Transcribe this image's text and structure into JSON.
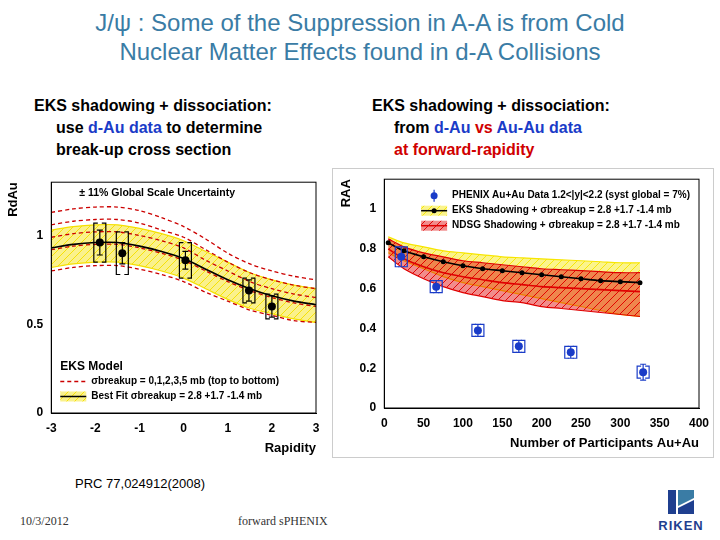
{
  "slide": {
    "title": [
      "J/ψ : Some of the Suppression in A-A is from Cold",
      "Nuclear Matter Effects found in d-A Collisions"
    ],
    "left_subtitle": [
      [
        {
          "text": "EKS shadowing + dissociation:",
          "color": "#000000"
        }
      ],
      [
        {
          "text": "use ",
          "color": "#000000"
        },
        {
          "text": "d-Au data",
          "color": "#1a3cc8"
        },
        {
          "text": " to determine",
          "color": "#000000"
        }
      ],
      [
        {
          "text": "break-up cross section",
          "color": "#000000"
        }
      ]
    ],
    "right_subtitle": [
      [
        {
          "text": "EKS shadowing + dissociation:",
          "color": "#000000"
        }
      ],
      [
        {
          "text": "from ",
          "color": "#000000"
        },
        {
          "text": "d-Au ",
          "color": "#1a3cc8"
        },
        {
          "text": "vs ",
          "color": "#d00000"
        },
        {
          "text": "Au-Au data",
          "color": "#1a3cc8"
        }
      ],
      [
        {
          "text": "at forward-rapidity",
          "color": "#d00000"
        }
      ]
    ],
    "reference": "PRC 77,024912(2008)",
    "date": "10/3/2012",
    "footer": "forward sPHENIX",
    "logo": "RIKEN"
  },
  "chart_data": [
    {
      "type": "line",
      "x_label": "Rapidity",
      "y_label": "RdAu",
      "xlim": [
        -3,
        3
      ],
      "xticks": [
        -3,
        -2,
        -1,
        0,
        1,
        2,
        3
      ],
      "ylim": [
        0,
        1.3
      ],
      "yticks": [
        0,
        0.5,
        1
      ],
      "grid": false,
      "legend": "lower left",
      "annotations": [
        "± 11% Global Scale Uncertainty",
        "EKS Model"
      ],
      "x": [
        -3,
        -2.5,
        -2,
        -1.5,
        -1,
        -0.5,
        0,
        0.5,
        1,
        1.5,
        2,
        2.5,
        3
      ],
      "series": [
        {
          "name": "σbreakup = 0,1,2,3,5 mb (top to bottom)",
          "color": "#cc0000",
          "line_style": "dashed",
          "curves": [
            [
              1.13,
              1.15,
              1.16,
              1.16,
              1.14,
              1.1,
              1.05,
              0.98,
              0.9,
              0.84,
              0.8,
              0.77,
              0.75
            ],
            [
              1.06,
              1.08,
              1.09,
              1.09,
              1.07,
              1.03,
              0.99,
              0.92,
              0.85,
              0.79,
              0.75,
              0.72,
              0.7
            ],
            [
              0.99,
              1.01,
              1.02,
              1.02,
              1.0,
              0.97,
              0.93,
              0.86,
              0.8,
              0.74,
              0.7,
              0.67,
              0.65
            ],
            [
              0.92,
              0.94,
              0.95,
              0.95,
              0.93,
              0.9,
              0.86,
              0.8,
              0.74,
              0.69,
              0.65,
              0.62,
              0.6
            ],
            [
              0.8,
              0.82,
              0.83,
              0.83,
              0.81,
              0.78,
              0.74,
              0.68,
              0.63,
              0.58,
              0.55,
              0.52,
              0.51
            ]
          ]
        },
        {
          "name": "Best Fit σbreakup = 2.8 +1.7 -1.4 mb",
          "color": "#000000",
          "values": [
            0.93,
            0.95,
            0.96,
            0.96,
            0.94,
            0.91,
            0.87,
            0.81,
            0.75,
            0.7,
            0.66,
            0.63,
            0.61
          ],
          "band": {
            "color": "#f5e000",
            "upper": [
              1.03,
              1.05,
              1.06,
              1.06,
              1.04,
              1.01,
              0.97,
              0.91,
              0.85,
              0.79,
              0.75,
              0.72,
              0.7
            ],
            "lower": [
              0.82,
              0.84,
              0.85,
              0.85,
              0.83,
              0.8,
              0.76,
              0.7,
              0.64,
              0.59,
              0.56,
              0.53,
              0.51
            ]
          }
        },
        {
          "type": "scatter",
          "color": "#000000",
          "marker": "circle",
          "x": [
            -1.9,
            -1.39,
            0.04,
            1.48,
            2.0
          ],
          "values": [
            0.96,
            0.9,
            0.86,
            0.69,
            0.6
          ],
          "errors": [
            0.07,
            0.06,
            0.05,
            0.06,
            0.06
          ],
          "syst_errors": [
            0.11,
            0.12,
            0.1,
            0.07,
            0.07
          ]
        }
      ]
    },
    {
      "type": "line",
      "x_label": "Number of Participants Au+Au",
      "y_label": "RAA",
      "xlim": [
        0,
        400
      ],
      "xticks": [
        0,
        50,
        100,
        150,
        200,
        250,
        300,
        350,
        400
      ],
      "ylim": [
        0,
        1.15
      ],
      "yticks": [
        0,
        0.2,
        0.4,
        0.6,
        0.8,
        1
      ],
      "grid": false,
      "legend": "upper right",
      "x": [
        5,
        25,
        50,
        75,
        100,
        125,
        150,
        175,
        200,
        225,
        250,
        275,
        300,
        325
      ],
      "series": [
        {
          "type": "scatter",
          "name": "PHENIX Au+Au Data 1.2<|y|<2.2 (syst global = 7%)",
          "color": "#1a3cc8",
          "marker": "circle",
          "x": [
            21.6,
            66,
            119,
            171,
            237,
            329
          ],
          "values": [
            0.76,
            0.61,
            0.39,
            0.31,
            0.28,
            0.18
          ],
          "errors": [
            0.05,
            0.03,
            0.03,
            0.03,
            0.03,
            0.04
          ],
          "syst_errors": [
            0.05,
            0.03,
            0.03,
            0.03,
            0.03,
            0.03
          ]
        },
        {
          "name": "EKS Shadowing + σbreakup = 2.8 +1.7 -1.4 mb",
          "color": "#000000",
          "marker": "circle",
          "values": [
            0.83,
            0.79,
            0.76,
            0.735,
            0.715,
            0.7,
            0.69,
            0.68,
            0.67,
            0.66,
            0.65,
            0.64,
            0.635,
            0.63
          ],
          "band": {
            "color": "#f7e600",
            "upper": [
              0.86,
              0.83,
              0.81,
              0.79,
              0.78,
              0.77,
              0.76,
              0.755,
              0.75,
              0.745,
              0.74,
              0.735,
              0.73,
              0.73
            ],
            "lower": [
              0.78,
              0.74,
              0.7,
              0.66,
              0.63,
              0.61,
              0.59,
              0.57,
              0.55,
              0.53,
              0.51,
              0.49,
              0.47,
              0.46
            ]
          }
        },
        {
          "name": "NDSG Shadowing + σbreakup = 2.8 +1.7 -1.4 mb",
          "color": "#e00000",
          "values": [
            0.8,
            0.75,
            0.71,
            0.68,
            0.66,
            0.645,
            0.63,
            0.62,
            0.61,
            0.605,
            0.6,
            0.595,
            0.59,
            0.585
          ],
          "band": {
            "color": "#e00000",
            "upper": [
              0.85,
              0.81,
              0.78,
              0.76,
              0.74,
              0.73,
              0.72,
              0.71,
              0.7,
              0.695,
              0.69,
              0.685,
              0.68,
              0.68
            ],
            "lower": [
              0.76,
              0.7,
              0.65,
              0.61,
              0.58,
              0.56,
              0.54,
              0.53,
              0.51,
              0.5,
              0.49,
              0.48,
              0.47,
              0.46
            ]
          }
        }
      ]
    }
  ]
}
